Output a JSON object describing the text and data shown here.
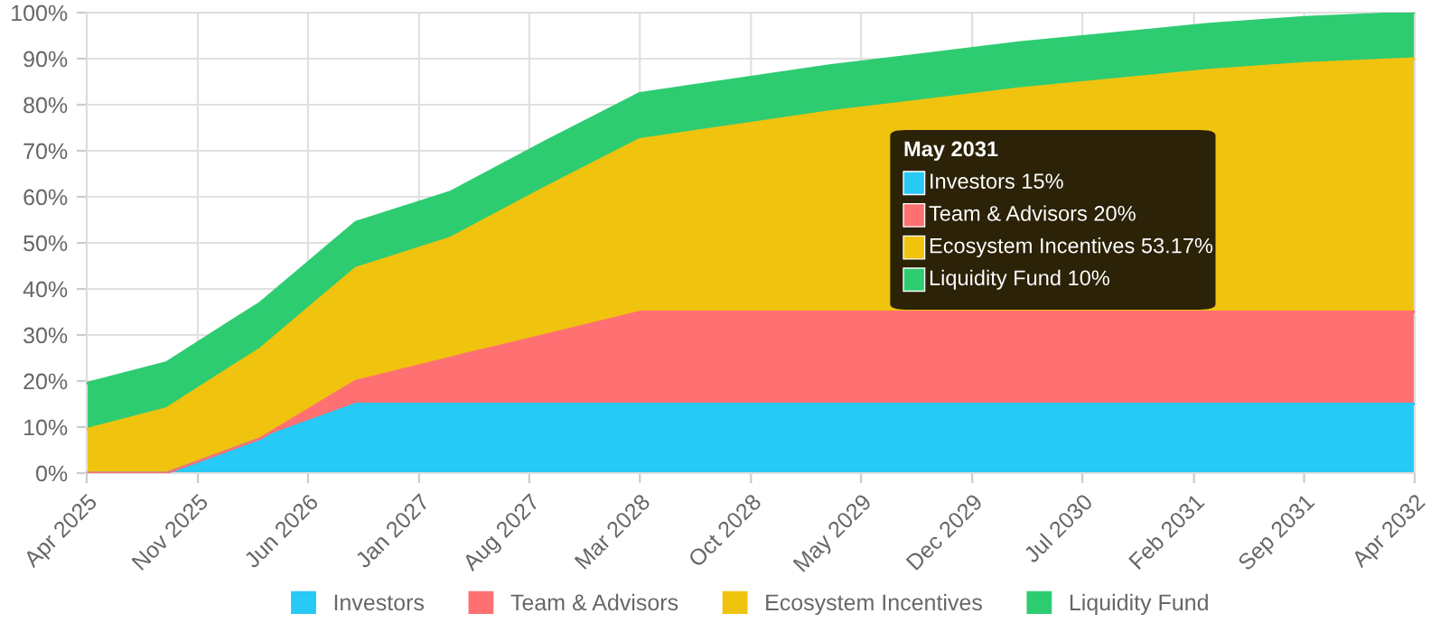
{
  "chart_data": {
    "type": "area",
    "stacked": true,
    "x": [
      "2025-04",
      "2025-09",
      "2026-03",
      "2026-09",
      "2027-03",
      "2027-09",
      "2028-03",
      "2028-09",
      "2029-03",
      "2029-09",
      "2030-03",
      "2030-09",
      "2031-03",
      "2031-09",
      "2032-04"
    ],
    "series": [
      {
        "name": "Investors",
        "color": "#27c9f5",
        "values": [
          0,
          0,
          7.5,
          15,
          15,
          15,
          15,
          15,
          15,
          15,
          15,
          15,
          15,
          15,
          15
        ]
      },
      {
        "name": "Team & Advisors",
        "color": "#ff7073",
        "values": [
          0,
          0,
          0,
          5,
          10,
          15,
          20,
          20,
          20,
          20,
          20,
          20,
          20,
          20,
          20
        ]
      },
      {
        "name": "Ecosystem Incentives",
        "color": "#f0c30f",
        "values": [
          9.5,
          14,
          19.5,
          24.5,
          26,
          32,
          37.5,
          40.5,
          43.5,
          46,
          48.5,
          50.5,
          52.5,
          54,
          55
        ]
      },
      {
        "name": "Liquidity Fund",
        "color": "#2ecc71",
        "values": [
          10,
          10,
          10,
          10,
          10,
          10,
          10,
          10,
          10,
          10,
          10,
          10,
          10,
          10,
          10
        ]
      }
    ],
    "xlim": [
      "2025-04",
      "2032-04"
    ],
    "xticks": [
      {
        "value": "2025-04",
        "label": "Apr 2025"
      },
      {
        "value": "2025-11",
        "label": "Nov 2025"
      },
      {
        "value": "2026-06",
        "label": "Jun 2026"
      },
      {
        "value": "2027-01",
        "label": "Jan 2027"
      },
      {
        "value": "2027-08",
        "label": "Aug 2027"
      },
      {
        "value": "2028-03",
        "label": "Mar 2028"
      },
      {
        "value": "2028-10",
        "label": "Oct 2028"
      },
      {
        "value": "2029-05",
        "label": "May 2029"
      },
      {
        "value": "2029-12",
        "label": "Dec 2029"
      },
      {
        "value": "2030-07",
        "label": "Jul 2030"
      },
      {
        "value": "2031-02",
        "label": "Feb 2031"
      },
      {
        "value": "2031-09",
        "label": "Sep 2031"
      },
      {
        "value": "2032-04",
        "label": "Apr 2032"
      }
    ],
    "ylim": [
      0,
      100
    ],
    "yticks": [
      {
        "value": 0,
        "label": "0%"
      },
      {
        "value": 10,
        "label": "10%"
      },
      {
        "value": 20,
        "label": "20%"
      },
      {
        "value": 30,
        "label": "30%"
      },
      {
        "value": 40,
        "label": "40%"
      },
      {
        "value": 50,
        "label": "50%"
      },
      {
        "value": 60,
        "label": "60%"
      },
      {
        "value": 70,
        "label": "70%"
      },
      {
        "value": 80,
        "label": "80%"
      },
      {
        "value": 90,
        "label": "90%"
      },
      {
        "value": 100,
        "label": "100%"
      }
    ],
    "grid": true,
    "legend": "bottom",
    "annotations": [
      "May 2031",
      "Investors 15%",
      "Team & Advisors 20%",
      "Ecosystem Incentives 53.17%",
      "Liquidity Fund 10%"
    ]
  }
}
